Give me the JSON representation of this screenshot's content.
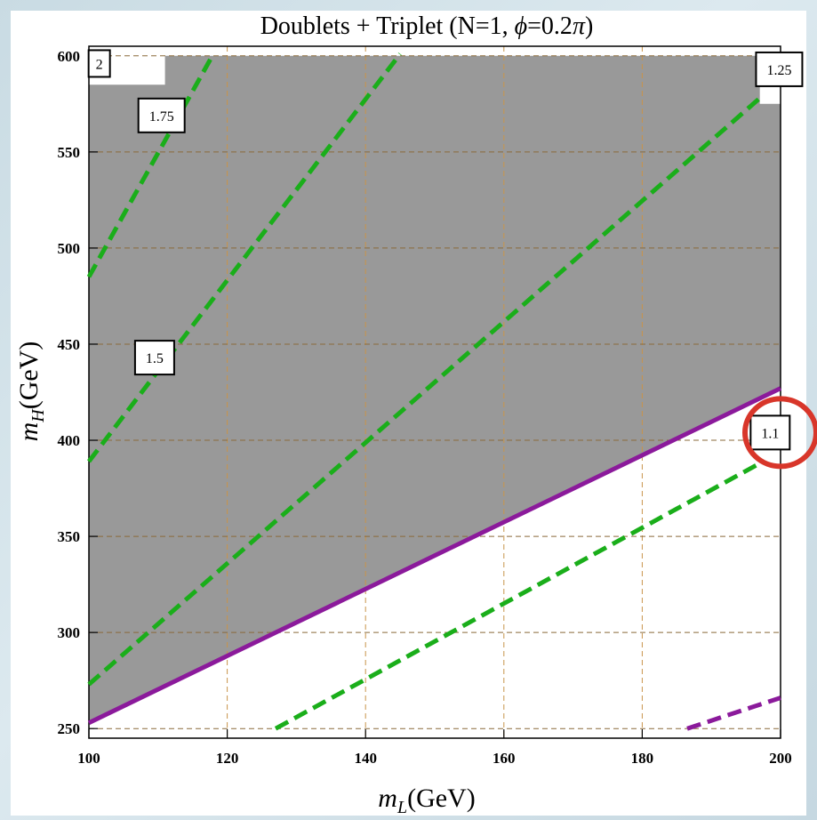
{
  "chart_data": {
    "type": "line",
    "title": "Doublets + Triplet (N=1, ϕ=0.2π)",
    "title_parts": {
      "prefix": "Doublets + Triplet (N=1, ",
      "phi": "ϕ",
      "mid": "=0.2",
      "pi": "π",
      "suffix": ")"
    },
    "xlabel": "m_L(GeV)",
    "xlabel_parts": {
      "m": "m",
      "sub": "L",
      "unit": "(GeV)"
    },
    "ylabel": "m_H(GeV)",
    "ylabel_parts": {
      "m": "m",
      "sub": "H",
      "unit": "(GeV)"
    },
    "xlim": [
      100,
      200
    ],
    "ylim": [
      245,
      605
    ],
    "x_ticks": [
      "100",
      "120",
      "140",
      "160",
      "180",
      "200"
    ],
    "y_ticks": [
      "250",
      "300",
      "350",
      "400",
      "450",
      "500",
      "550",
      "600"
    ],
    "grid": true,
    "shaded_region": {
      "color": "#999999",
      "polygon": [
        [
          100,
          253
        ],
        [
          200,
          427
        ],
        [
          200,
          575
        ],
        [
          197,
          575
        ],
        [
          197,
          600
        ],
        [
          111,
          600
        ],
        [
          111,
          585
        ],
        [
          100,
          585
        ]
      ]
    },
    "boundary_line": {
      "color": "#8b1a9b",
      "style": "solid",
      "points": [
        [
          100,
          253
        ],
        [
          200,
          427
        ]
      ]
    },
    "contours": [
      {
        "label": "2",
        "color": "#1aae1a",
        "style": "dashed",
        "points": [
          [
            100,
            485
          ],
          [
            118,
            601
          ]
        ],
        "label_at": [
          101.5,
          596
        ]
      },
      {
        "label": "1.75",
        "color": "#1aae1a",
        "style": "dashed",
        "points": [
          [
            100,
            485
          ],
          [
            118,
            601
          ]
        ],
        "label_at": [
          110.5,
          569
        ]
      },
      {
        "label": "1.5",
        "color": "#1aae1a",
        "style": "dashed",
        "points": [
          [
            100,
            389
          ],
          [
            145,
            601
          ]
        ],
        "label_at": [
          109.5,
          443
        ]
      },
      {
        "label": "1.25",
        "color": "#1aae1a",
        "style": "dashed",
        "points": [
          [
            100,
            273
          ],
          [
            197,
            578
          ]
        ],
        "label_at": [
          199.8,
          593
        ]
      },
      {
        "label": "1.1",
        "color": "#1aae1a",
        "style": "dashed",
        "points": [
          [
            127,
            250
          ],
          [
            197,
            388
          ]
        ],
        "label_at": [
          198.5,
          404
        ]
      }
    ],
    "purple_dashed": {
      "color": "#8b1a9b",
      "style": "dashed",
      "points": [
        [
          186.5,
          250
        ],
        [
          200,
          266
        ]
      ]
    },
    "annotation": {
      "type": "circle",
      "color": "#d8362a",
      "center": [
        200,
        404
      ]
    }
  }
}
